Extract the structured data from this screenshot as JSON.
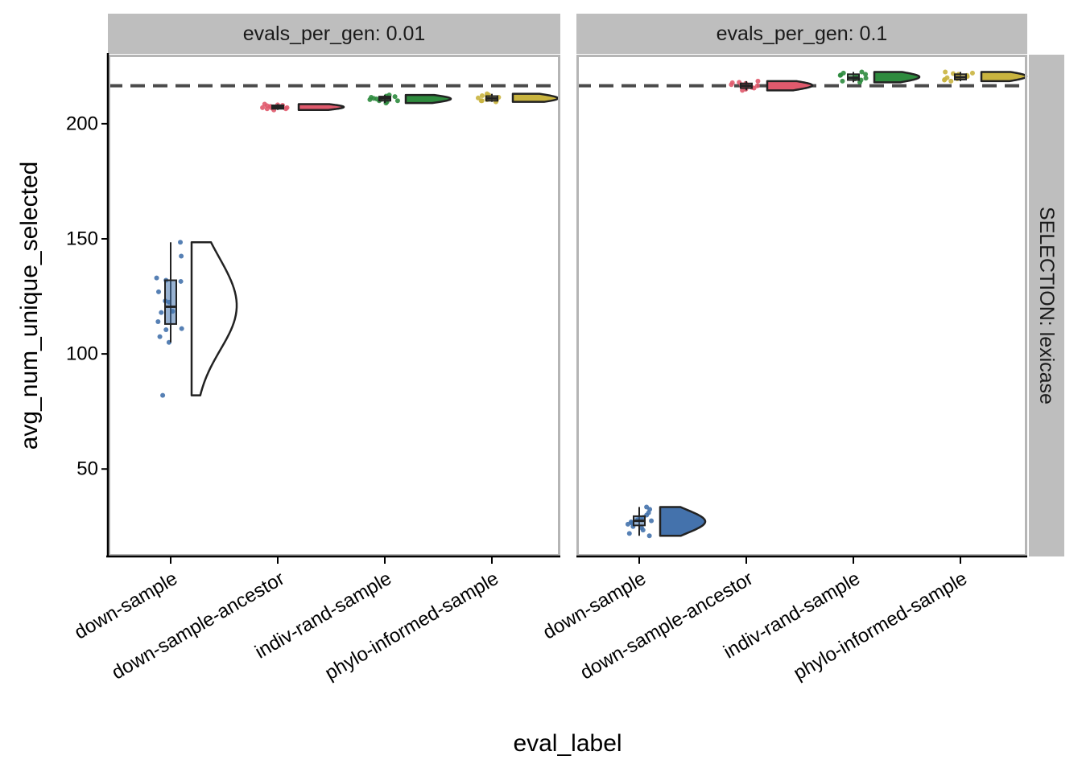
{
  "chart_data": {
    "type": "raincloud",
    "xlabel": "eval_label",
    "ylabel": "avg_num_unique_selected",
    "yticks": [
      50,
      100,
      150,
      200
    ],
    "ylim": [
      12,
      230
    ],
    "reference_line": {
      "y": 216.5,
      "style": "dashed"
    },
    "categories": [
      "down-sample",
      "down-sample-ancestor",
      "indiv-rand-sample",
      "phylo-informed-sample"
    ],
    "colors": {
      "down-sample": "#4472ac",
      "down-sample-ancestor": "#e05a6d",
      "indiv-rand-sample": "#2e8b3e",
      "phylo-informed-sample": "#c9b43f"
    },
    "row_strip": "SELECTION: lexicase",
    "panels": [
      {
        "strip": "evals_per_gen: 0.01",
        "groups": [
          {
            "category": "down-sample",
            "points": [
              148.5,
              142.5,
              133,
              132,
              131.5,
              127,
              123,
              122.5,
              118.5,
              118,
              114,
              111,
              110.5,
              107.5,
              105,
              82
            ],
            "box": {
              "q1": 113,
              "median": 120.5,
              "q3": 132,
              "min": 105,
              "max": 148.5
            }
          },
          {
            "category": "down-sample-ancestor",
            "points": [
              208.5,
              208,
              207.5,
              207.5,
              207,
              207,
              206.5,
              206.5,
              206,
              207.8,
              208.2,
              206.8
            ],
            "box": {
              "q1": 206.5,
              "median": 207.2,
              "q3": 208,
              "min": 206,
              "max": 208.5
            }
          },
          {
            "category": "indiv-rand-sample",
            "points": [
              212.5,
              212,
              211.5,
              211,
              211,
              210.5,
              210,
              210,
              209.5,
              209,
              211.8,
              210.8
            ],
            "box": {
              "q1": 210,
              "median": 211,
              "q3": 211.8,
              "min": 209,
              "max": 212.5
            }
          },
          {
            "category": "phylo-informed-sample",
            "points": [
              213,
              212.5,
              212,
              211.5,
              211,
              210.5,
              210,
              210,
              209.5,
              211.2,
              212.2,
              210.2
            ],
            "box": {
              "q1": 210,
              "median": 211,
              "q3": 212,
              "min": 209.5,
              "max": 213
            }
          }
        ]
      },
      {
        "strip": "evals_per_gen: 0.1",
        "groups": [
          {
            "category": "down-sample",
            "points": [
              33.5,
              32.5,
              31,
              30,
              29,
              28.5,
              28,
              27.5,
              27,
              26.5,
              26,
              25,
              24.5,
              23.5,
              22,
              21
            ],
            "box": {
              "q1": 25.5,
              "median": 27.5,
              "q3": 29.5,
              "min": 21,
              "max": 33.5
            }
          },
          {
            "category": "down-sample-ancestor",
            "points": [
              218.5,
              218,
              217.5,
              217,
              217,
              216.5,
              216,
              215.5,
              215,
              214.5,
              217.8,
              215.8
            ],
            "box": {
              "q1": 215.5,
              "median": 216.5,
              "q3": 217.5,
              "min": 214.5,
              "max": 218.5
            }
          },
          {
            "category": "indiv-rand-sample",
            "points": [
              222.5,
              222,
              221.5,
              221,
              220.5,
              220,
              219.5,
              219,
              218.5,
              218,
              221.2,
              219.8
            ],
            "box": {
              "q1": 219,
              "median": 220,
              "q3": 221.5,
              "min": 218,
              "max": 222.5
            }
          },
          {
            "category": "phylo-informed-sample",
            "points": [
              222.5,
              222,
              221.5,
              221,
              220.5,
              220,
              219.5,
              219,
              218.5,
              220.8,
              219.2,
              221.8
            ],
            "box": {
              "q1": 219.2,
              "median": 220.2,
              "q3": 221.5,
              "min": 218.5,
              "max": 222.5
            }
          }
        ]
      }
    ]
  }
}
